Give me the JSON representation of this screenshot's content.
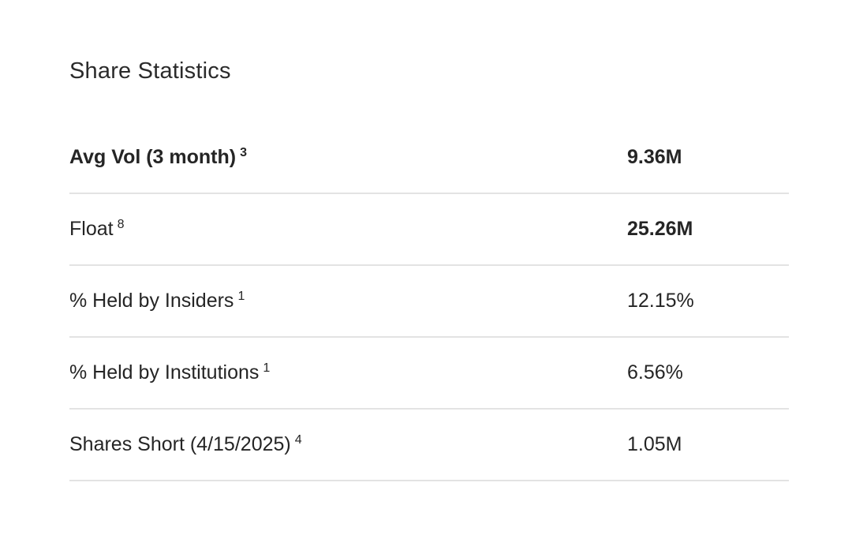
{
  "section": {
    "title": "Share Statistics"
  },
  "table": {
    "rows": [
      {
        "label": "Avg Vol (3 month)",
        "sup": "3",
        "value": "9.36M",
        "label_bold": true,
        "value_bold": true
      },
      {
        "label": "Float",
        "sup": "8",
        "value": "25.26M",
        "label_bold": false,
        "value_bold": true
      },
      {
        "label": "% Held by Insiders",
        "sup": "1",
        "value": "12.15%",
        "label_bold": false,
        "value_bold": false
      },
      {
        "label": "% Held by Institutions",
        "sup": "1",
        "value": "6.56%",
        "label_bold": false,
        "value_bold": false
      },
      {
        "label": "Shares Short (4/15/2025)",
        "sup": "4",
        "value": "1.05M",
        "label_bold": false,
        "value_bold": false
      }
    ]
  },
  "colors": {
    "text": "#252525",
    "title": "#2b2b2b",
    "divider": "#e3e3e3",
    "background": "#ffffff"
  }
}
